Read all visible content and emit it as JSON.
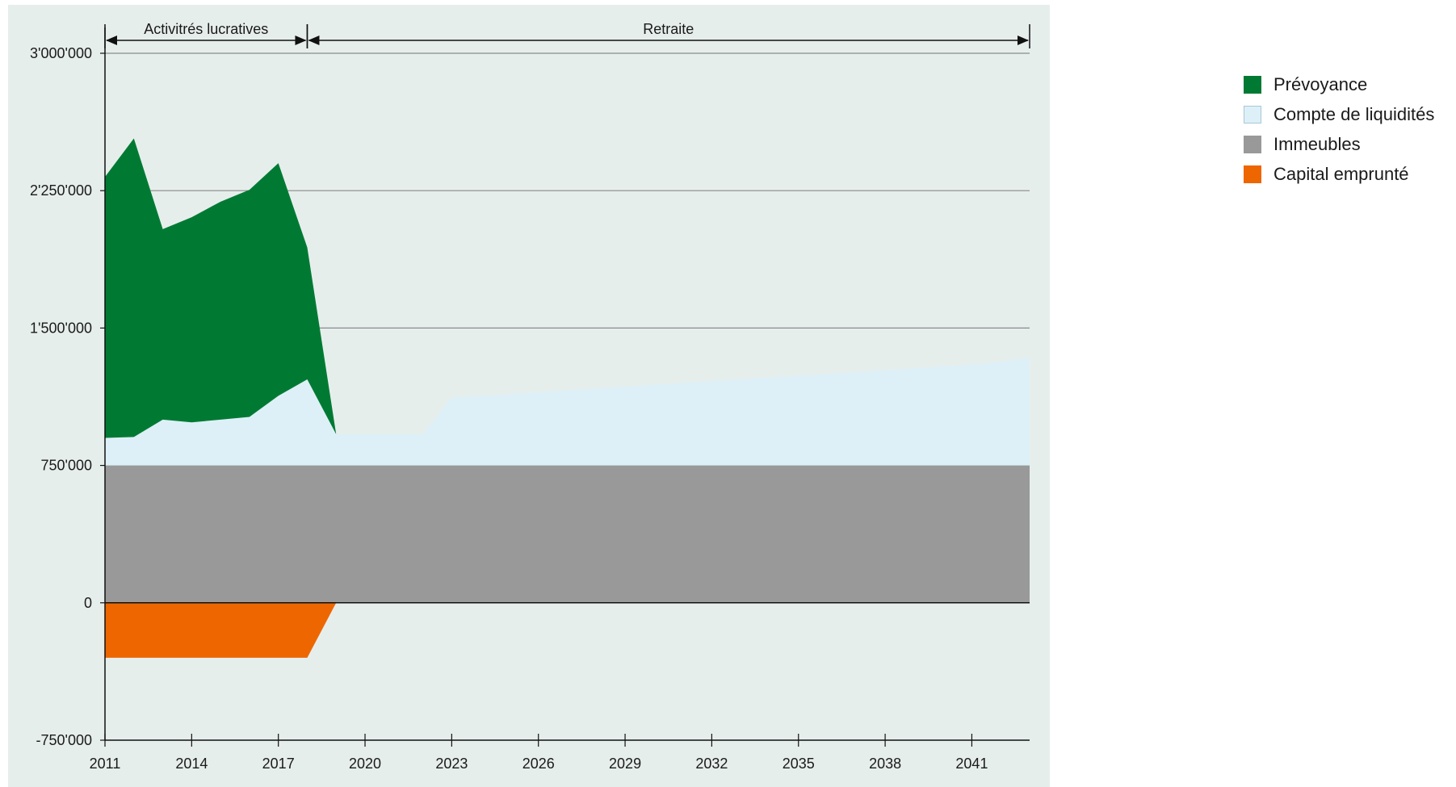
{
  "chart_data": {
    "type": "area",
    "stacked": true,
    "x": [
      2011,
      2012,
      2013,
      2014,
      2015,
      2016,
      2017,
      2018,
      2019,
      2020,
      2021,
      2022,
      2023,
      2024,
      2025,
      2026,
      2027,
      2028,
      2029,
      2030,
      2031,
      2032,
      2033,
      2034,
      2035,
      2036,
      2037,
      2038,
      2039,
      2040,
      2041,
      2042,
      2043
    ],
    "series": [
      {
        "name": "Prévoyance",
        "color": "#007a33",
        "values": [
          1425000,
          1630000,
          1040000,
          1120000,
          1190000,
          1240000,
          1270000,
          720000,
          0,
          0,
          0,
          0,
          0,
          0,
          0,
          0,
          0,
          0,
          0,
          0,
          0,
          0,
          0,
          0,
          0,
          0,
          0,
          0,
          0,
          0,
          0,
          0,
          0
        ]
      },
      {
        "name": "Compte de liquidités",
        "color": "#ddf0f8",
        "values": [
          150000,
          155000,
          250000,
          235000,
          250000,
          265000,
          380000,
          470000,
          170000,
          170000,
          170000,
          170000,
          370000,
          380000,
          390000,
          400000,
          410000,
          420000,
          430000,
          440000,
          450000,
          460000,
          470000,
          480000,
          490000,
          500000,
          510000,
          520000,
          530000,
          540000,
          550000,
          565000,
          590000
        ]
      },
      {
        "name": "Immeubles",
        "color": "#999999",
        "values": [
          750000,
          750000,
          750000,
          750000,
          750000,
          750000,
          750000,
          750000,
          750000,
          750000,
          750000,
          750000,
          750000,
          750000,
          750000,
          750000,
          750000,
          750000,
          750000,
          750000,
          750000,
          750000,
          750000,
          750000,
          750000,
          750000,
          750000,
          750000,
          750000,
          750000,
          750000,
          750000,
          750000
        ]
      },
      {
        "name": "Capital emprunté",
        "color": "#ee6600",
        "values": [
          -300000,
          -300000,
          -300000,
          -300000,
          -300000,
          -300000,
          -300000,
          -300000,
          0,
          0,
          0,
          0,
          0,
          0,
          0,
          0,
          0,
          0,
          0,
          0,
          0,
          0,
          0,
          0,
          0,
          0,
          0,
          0,
          0,
          0,
          0,
          0,
          0
        ]
      }
    ],
    "xlim": [
      2011,
      2043
    ],
    "ylim": [
      -750000,
      3000000
    ],
    "xticks": [
      2011,
      2014,
      2017,
      2020,
      2023,
      2026,
      2029,
      2032,
      2035,
      2038,
      2041
    ],
    "xtick_labels": [
      "2011",
      "2014",
      "2017",
      "2020",
      "2023",
      "2026",
      "2029",
      "2032",
      "2035",
      "2038",
      "2041"
    ],
    "yticks": [
      -750000,
      0,
      750000,
      1500000,
      2250000,
      3000000
    ],
    "ytick_labels": [
      "-750'000",
      "0",
      "750'000",
      "1'500'000",
      "2'250'000",
      "3'000'000"
    ],
    "grid": true,
    "legend_position": "top-right",
    "background_color": "#e6eeec",
    "phases": [
      {
        "label": "Activitrés lucratives",
        "from": 2011,
        "to": 2018
      },
      {
        "label": "Retraite",
        "from": 2018,
        "to": 2043
      }
    ]
  }
}
